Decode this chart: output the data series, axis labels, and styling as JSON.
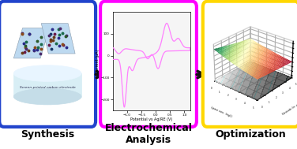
{
  "panel1_border_color": "#2244CC",
  "panel2_border_color": "#FF00FF",
  "panel3_border_color": "#FFD700",
  "arrow_color": "#111111",
  "background_color": "#FFFFFF",
  "label1": "Synthesis",
  "label2": "Electrochemical\nAnalysis",
  "label3": "Optimization",
  "label_fontsize": 9,
  "cv_xlabel": "Potential vs Ag/RE (V)",
  "cv_ylabel": "Current (µA)",
  "cv_xlim": [
    -1.5,
    1.2
  ],
  "cv_ylim": [
    -250,
    200
  ],
  "cv_color": "#FF80FF",
  "surf_xlabel": "Lipase conc. (mg/L)",
  "surf_ylabel": "Electrode (in. µm)",
  "panel_bg": "#F8F8F8"
}
